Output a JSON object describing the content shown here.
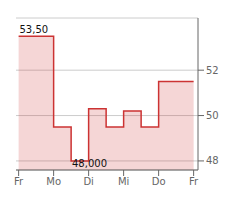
{
  "chart_data": {
    "type": "step_area",
    "x": [
      0,
      1,
      2,
      3,
      4,
      5,
      6,
      7,
      8,
      9,
      10,
      11,
      12,
      13,
      14,
      15,
      16,
      17,
      18,
      19,
      20
    ],
    "values": [
      53.5,
      53.5,
      53.5,
      53.5,
      49.5,
      49.5,
      48.0,
      48.0,
      50.3,
      50.3,
      49.5,
      49.5,
      50.2,
      50.2,
      49.5,
      49.5,
      51.5,
      51.5,
      51.5,
      51.5,
      51.5
    ],
    "xlim": [
      -0.3,
      20.5
    ],
    "ylim": [
      47.6,
      54.3
    ],
    "xticks": [
      {
        "value": 0,
        "label": "Fr"
      },
      {
        "value": 4,
        "label": "Mo"
      },
      {
        "value": 8,
        "label": "Di"
      },
      {
        "value": 12,
        "label": "Mi"
      },
      {
        "value": 16,
        "label": "Do"
      },
      {
        "value": 20,
        "label": "Fr"
      }
    ],
    "yticks": [
      48,
      50,
      52
    ],
    "color": "#cc3333",
    "grid": true,
    "annotations": [
      {
        "text": "53,50",
        "x": 0.1,
        "y": 53.55
      },
      {
        "text": "48,000",
        "x": 6.1,
        "y": 47.65
      }
    ]
  }
}
